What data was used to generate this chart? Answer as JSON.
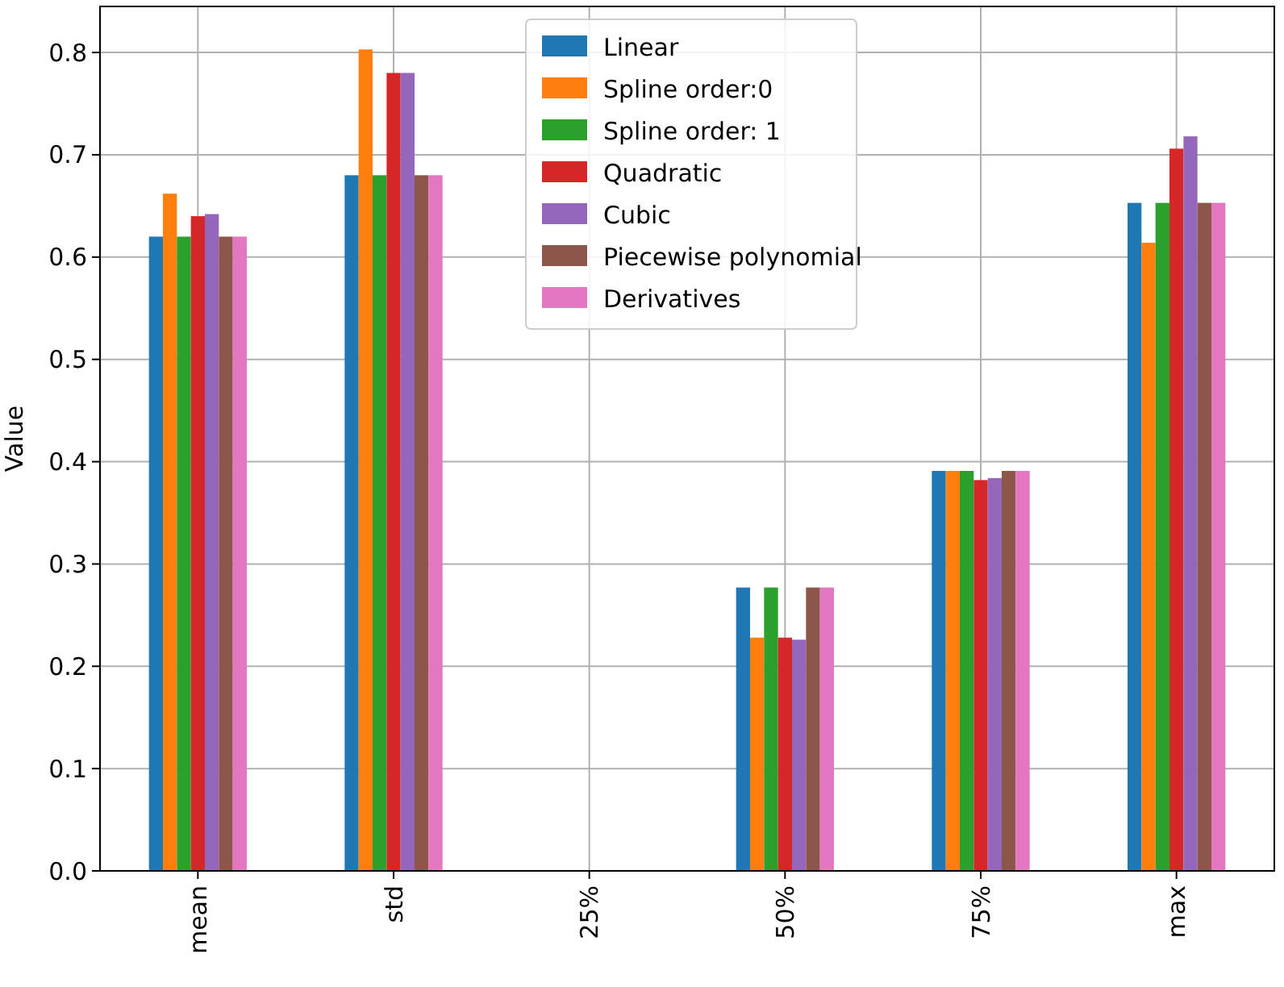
{
  "chart_data": {
    "type": "bar",
    "ylabel": "Value",
    "categories": [
      "mean",
      "std",
      "25%",
      "50%",
      "75%",
      "max"
    ],
    "series": [
      {
        "name": "Linear",
        "color": "#1f77b4",
        "values": [
          0.62,
          0.68,
          0,
          0.277,
          0.391,
          0.653
        ]
      },
      {
        "name": "Spline order:0",
        "color": "#ff7f0e",
        "values": [
          0.662,
          0.803,
          0,
          0.228,
          0.391,
          0.614
        ]
      },
      {
        "name": "Spline order: 1",
        "color": "#2ca02c",
        "values": [
          0.62,
          0.68,
          0,
          0.277,
          0.391,
          0.653
        ]
      },
      {
        "name": "Quadratic",
        "color": "#d62728",
        "values": [
          0.64,
          0.78,
          0,
          0.228,
          0.382,
          0.706
        ]
      },
      {
        "name": "Cubic",
        "color": "#9467bd",
        "values": [
          0.642,
          0.78,
          0,
          0.226,
          0.384,
          0.718
        ]
      },
      {
        "name": "Piecewise polynomial",
        "color": "#8c564b",
        "values": [
          0.62,
          0.68,
          0,
          0.277,
          0.391,
          0.653
        ]
      },
      {
        "name": "Derivatives",
        "color": "#e377c2",
        "values": [
          0.62,
          0.68,
          0,
          0.277,
          0.391,
          0.653
        ]
      }
    ],
    "ylim": [
      0,
      0.845
    ],
    "yticks": [
      {
        "value": 0,
        "label": "0.0"
      },
      {
        "value": 0.1,
        "label": "0.1"
      },
      {
        "value": 0.2,
        "label": "0.2"
      },
      {
        "value": 0.3,
        "label": "0.3"
      },
      {
        "value": 0.4,
        "label": "0.4"
      },
      {
        "value": 0.5,
        "label": "0.5"
      },
      {
        "value": 0.6,
        "label": "0.6"
      },
      {
        "value": 0.7,
        "label": "0.7"
      },
      {
        "value": 0.8,
        "label": "0.8"
      }
    ],
    "grid": true,
    "legend": "top"
  }
}
